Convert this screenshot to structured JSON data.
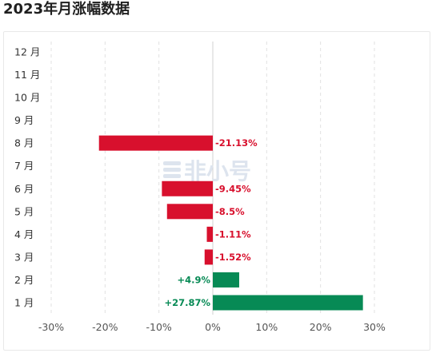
{
  "header": {
    "title": "2023年月涨幅数据"
  },
  "colors": {
    "negative": "#d8102d",
    "positive": "#078a55",
    "grid": "#e2e2e2",
    "axis": "#d0d0d0"
  },
  "watermark": {
    "text": "非小号"
  },
  "chart_data": {
    "type": "bar",
    "orientation": "horizontal",
    "title": "2023年月涨幅数据",
    "categories": [
      "1 月",
      "2 月",
      "3 月",
      "4 月",
      "5 月",
      "6 月",
      "7 月",
      "8 月",
      "9 月",
      "10 月",
      "11 月",
      "12 月"
    ],
    "values": [
      27.87,
      4.9,
      -1.52,
      -1.11,
      -8.5,
      -9.45,
      null,
      -21.13,
      null,
      null,
      null,
      null
    ],
    "data_labels": [
      "+27.87%",
      "+4.9%",
      "-1.52%",
      "-1.11%",
      "-8.5%",
      "-9.45%",
      "",
      "-21.13%",
      "",
      "",
      "",
      ""
    ],
    "xticks": [
      "-30%",
      "-20%",
      "-10%",
      "0%",
      "10%",
      "20%",
      "30%"
    ],
    "xlim": [
      -30,
      30
    ],
    "grid": true,
    "xlabel": "",
    "ylabel": ""
  }
}
